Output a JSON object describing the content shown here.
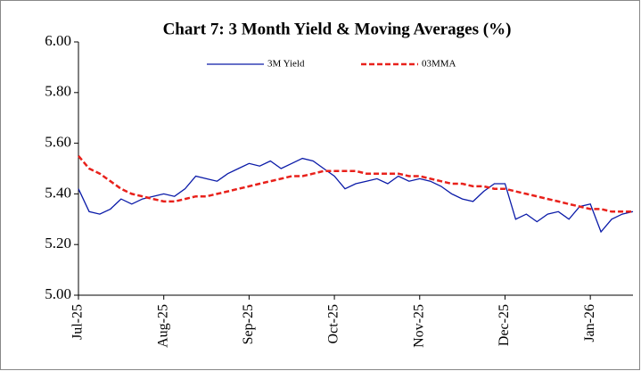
{
  "chart_data": {
    "type": "line",
    "title": "Chart 7: 3 Month Yield & Moving Averages (%)",
    "categories": [
      "Jul-25",
      null,
      null,
      null,
      null,
      null,
      null,
      null,
      "Aug-25",
      null,
      null,
      null,
      null,
      null,
      null,
      null,
      "Sep-25",
      null,
      null,
      null,
      null,
      null,
      null,
      null,
      "Oct-25",
      null,
      null,
      null,
      null,
      null,
      null,
      null,
      "Nov-25",
      null,
      null,
      null,
      null,
      null,
      null,
      null,
      "Dec-25",
      null,
      null,
      null,
      null,
      null,
      null,
      null,
      "Jan-26",
      null,
      null,
      null,
      null
    ],
    "series": [
      {
        "name": "3M Yield",
        "color": "#0a1aa8",
        "dash": false,
        "values": [
          5.42,
          5.33,
          5.32,
          5.34,
          5.38,
          5.36,
          5.38,
          5.39,
          5.4,
          5.39,
          5.42,
          5.47,
          5.46,
          5.45,
          5.48,
          5.5,
          5.52,
          5.51,
          5.53,
          5.5,
          5.52,
          5.54,
          5.53,
          5.5,
          5.47,
          5.42,
          5.44,
          5.45,
          5.46,
          5.44,
          5.47,
          5.45,
          5.46,
          5.45,
          5.43,
          5.4,
          5.38,
          5.37,
          5.41,
          5.44,
          5.44,
          5.3,
          5.32,
          5.29,
          5.32,
          5.33,
          5.3,
          5.35,
          5.36,
          5.25,
          5.3,
          5.32,
          5.33
        ]
      },
      {
        "name": "03MMA",
        "color": "#e8211b",
        "dash": true,
        "values": [
          5.55,
          5.5,
          5.48,
          5.45,
          5.42,
          5.4,
          5.39,
          5.38,
          5.37,
          5.37,
          5.38,
          5.39,
          5.39,
          5.4,
          5.41,
          5.42,
          5.43,
          5.44,
          5.45,
          5.46,
          5.47,
          5.47,
          5.48,
          5.49,
          5.49,
          5.49,
          5.49,
          5.48,
          5.48,
          5.48,
          5.48,
          5.47,
          5.47,
          5.46,
          5.45,
          5.44,
          5.44,
          5.43,
          5.43,
          5.42,
          5.42,
          5.41,
          5.4,
          5.39,
          5.38,
          5.37,
          5.36,
          5.35,
          5.34,
          5.34,
          5.33,
          5.33,
          5.33
        ]
      }
    ],
    "ylim": [
      5,
      6
    ],
    "yticks": [
      {
        "value": 5,
        "label": "5.00"
      },
      {
        "value": 5.2,
        "label": "5.20"
      },
      {
        "value": 5.4,
        "label": "5.40"
      },
      {
        "value": 5.6,
        "label": "5.60"
      },
      {
        "value": 5.8,
        "label": "5.80"
      },
      {
        "value": 6,
        "label": "6.00"
      }
    ],
    "grid": false,
    "legend": "top"
  }
}
